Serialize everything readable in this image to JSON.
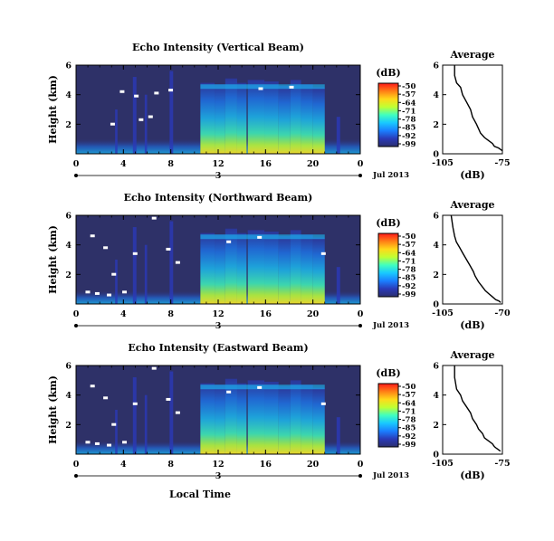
{
  "figure": {
    "xlabel": "Local Time",
    "date_label": "Jul 2013",
    "day_marker": "3",
    "colorbar_unit": "(dB)",
    "colorbar_ticks": [
      "-50",
      "-57",
      "-64",
      "-71",
      "-78",
      "-85",
      "-92",
      "-99"
    ],
    "colorbar_colors": [
      "#ff1a1a",
      "#ff7f16",
      "#ffd91a",
      "#bfff33",
      "#40ffbf",
      "#19c8ff",
      "#1a7fff",
      "#2a3ab8",
      "#2b2f6e"
    ],
    "background_color": "#2e3168"
  },
  "chart_data": [
    {
      "type": "heatmap",
      "title": "Echo Intensity (Vertical Beam)",
      "ylabel": "Height (km)",
      "x_ticks": [
        "0",
        "4",
        "8",
        "12",
        "16",
        "20",
        "0"
      ],
      "y_ticks": [
        "6",
        "4",
        "2"
      ],
      "xlim": [
        0,
        24
      ],
      "ylim": [
        0,
        6
      ],
      "zlim": [
        -99,
        -50
      ]
    },
    {
      "type": "line",
      "title": "Average",
      "xlabel": "(dB)",
      "x_ticks": [
        "-105",
        "-75"
      ],
      "y_ticks": [
        "6",
        "4",
        "2",
        "0"
      ],
      "xlim": [
        -105,
        -75
      ],
      "ylim": [
        0,
        6
      ],
      "x": [
        -99,
        -99,
        -98,
        -96,
        -95,
        -93,
        -91,
        -90,
        -88,
        -87,
        -86,
        -84,
        -82,
        -80,
        -79,
        -77,
        -76,
        -75
      ],
      "y": [
        6.0,
        5.3,
        4.8,
        4.5,
        4.0,
        3.5,
        3.0,
        2.5,
        2.0,
        1.7,
        1.4,
        1.1,
        0.9,
        0.7,
        0.5,
        0.4,
        0.3,
        0.2
      ]
    },
    {
      "type": "heatmap",
      "title": "Echo Intensity (Northward Beam)",
      "ylabel": "Height (km)",
      "x_ticks": [
        "0",
        "4",
        "8",
        "12",
        "16",
        "20",
        "0"
      ],
      "y_ticks": [
        "6",
        "4",
        "2"
      ],
      "xlim": [
        0,
        24
      ],
      "ylim": [
        0,
        6
      ],
      "zlim": [
        -99,
        -50
      ]
    },
    {
      "type": "line",
      "title": "Average",
      "xlabel": "(dB)",
      "x_ticks": [
        "-105",
        "-70"
      ],
      "y_ticks": [
        "6",
        "4",
        "2",
        "0"
      ],
      "xlim": [
        -105,
        -70
      ],
      "ylim": [
        0,
        6
      ],
      "x": [
        -100,
        -99,
        -98,
        -97,
        -95,
        -93,
        -91,
        -89,
        -87,
        -86,
        -84,
        -82,
        -80,
        -78,
        -76,
        -74,
        -72,
        -71
      ],
      "y": [
        6.0,
        5.2,
        4.6,
        4.2,
        3.8,
        3.4,
        3.0,
        2.6,
        2.2,
        1.9,
        1.5,
        1.2,
        0.9,
        0.7,
        0.5,
        0.3,
        0.2,
        0.1
      ]
    },
    {
      "type": "heatmap",
      "title": "Echo Intensity (Eastward Beam)",
      "ylabel": "Height (km)",
      "x_ticks": [
        "0",
        "4",
        "8",
        "12",
        "16",
        "20",
        "0"
      ],
      "y_ticks": [
        "6",
        "4",
        "2"
      ],
      "xlim": [
        0,
        24
      ],
      "ylim": [
        0,
        6
      ],
      "zlim": [
        -99,
        -50
      ]
    },
    {
      "type": "line",
      "title": "Average",
      "xlabel": "(dB)",
      "x_ticks": [
        "-105",
        "-75"
      ],
      "y_ticks": [
        "6",
        "4",
        "2",
        "0"
      ],
      "xlim": [
        -105,
        -75
      ],
      "ylim": [
        0,
        6
      ],
      "x": [
        -99,
        -99,
        -98,
        -96,
        -95,
        -93,
        -91,
        -90,
        -88,
        -87,
        -85,
        -84,
        -82,
        -80,
        -79,
        -78,
        -77,
        -76
      ],
      "y": [
        6.0,
        5.2,
        4.4,
        4.0,
        3.6,
        3.2,
        2.8,
        2.4,
        2.0,
        1.7,
        1.4,
        1.1,
        0.9,
        0.7,
        0.5,
        0.4,
        0.3,
        0.2
      ]
    }
  ]
}
